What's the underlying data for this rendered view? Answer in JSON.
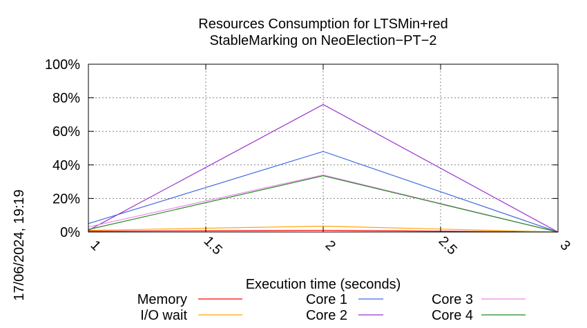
{
  "chart_data": {
    "type": "line",
    "title": [
      "Resources Consumption for LTSMin+red",
      "StableMarking on NeoElection−PT−2"
    ],
    "xlabel": "Execution time (seconds)",
    "ylabel": "",
    "xlim": [
      1,
      3
    ],
    "ylim": [
      0,
      100
    ],
    "x_ticks": [
      "1",
      "1.5",
      "2",
      "2.5",
      "3"
    ],
    "y_ticks": [
      "0%",
      "20%",
      "40%",
      "60%",
      "80%",
      "100%"
    ],
    "grid": true,
    "legend_position": "bottom",
    "x": [
      1,
      2,
      3
    ],
    "series": [
      {
        "name": "Memory",
        "color": "#ff0000",
        "values": [
          0.5,
          1,
          0
        ]
      },
      {
        "name": "I/O wait",
        "color": "#ffa500",
        "values": [
          1,
          3.5,
          0
        ]
      },
      {
        "name": "Core 1",
        "color": "#4169e1",
        "values": [
          5,
          48,
          0
        ]
      },
      {
        "name": "Core 2",
        "color": "#9932cc",
        "values": [
          1,
          76,
          0
        ]
      },
      {
        "name": "Core 3",
        "color": "#ee82ee",
        "values": [
          3,
          34,
          0
        ]
      },
      {
        "name": "Core 4",
        "color": "#228b22",
        "values": [
          1.5,
          33.5,
          0
        ]
      }
    ]
  },
  "timestamp": "17/06/2024, 19:19"
}
